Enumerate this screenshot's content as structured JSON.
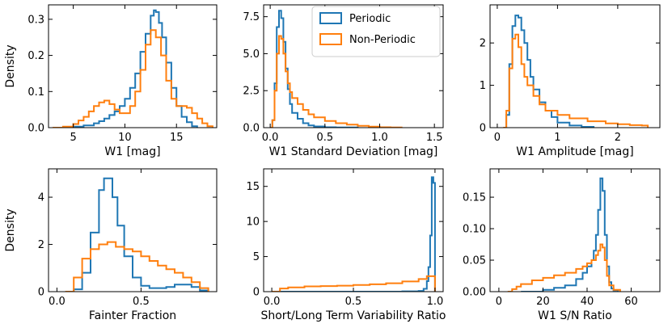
{
  "colors": {
    "periodic": "#1f77b4",
    "nonperiodic": "#ff7f0e"
  },
  "legend": {
    "location": "upper-right of second panel",
    "entries": [
      "Periodic",
      "Non-Periodic"
    ]
  },
  "chart_data": [
    {
      "type": "histogram-step",
      "xlabel": "W1 [mag]",
      "ylabel": "Density",
      "xlim": [
        2.6,
        18.9
      ],
      "ylim": [
        0,
        0.34
      ],
      "xticks": [
        5,
        10,
        15
      ],
      "xtick_labels": [
        "5",
        "10",
        "15"
      ],
      "yticks": [
        0.0,
        0.1,
        0.2,
        0.3
      ],
      "ytick_labels": [
        "0.0",
        "0.1",
        "0.2",
        "0.3"
      ],
      "series": [
        {
          "name": "Periodic",
          "x": [
            4.0,
            5.0,
            6.0,
            7.0,
            7.5,
            8.0,
            8.5,
            9.0,
            9.5,
            10.0,
            10.5,
            11.0,
            11.5,
            12.0,
            12.5,
            12.8,
            13.0,
            13.3,
            13.6,
            14.0,
            14.5,
            15.0,
            15.5,
            16.0,
            16.5,
            17.0
          ],
          "y": [
            0.0,
            0.003,
            0.006,
            0.012,
            0.018,
            0.025,
            0.035,
            0.045,
            0.06,
            0.08,
            0.11,
            0.15,
            0.21,
            0.26,
            0.31,
            0.325,
            0.32,
            0.29,
            0.25,
            0.18,
            0.11,
            0.06,
            0.03,
            0.015,
            0.004,
            0.0
          ]
        },
        {
          "name": "Non-Periodic",
          "x": [
            3.0,
            4.0,
            5.0,
            5.5,
            6.0,
            6.5,
            7.0,
            7.5,
            8.0,
            8.5,
            9.0,
            9.5,
            10.0,
            10.5,
            11.0,
            11.5,
            12.0,
            12.5,
            13.0,
            13.5,
            14.0,
            14.5,
            15.0,
            15.5,
            16.0,
            16.5,
            17.0,
            17.5,
            18.0,
            18.5
          ],
          "y": [
            0.0,
            0.003,
            0.01,
            0.02,
            0.03,
            0.045,
            0.06,
            0.07,
            0.075,
            0.065,
            0.05,
            0.04,
            0.04,
            0.06,
            0.1,
            0.16,
            0.23,
            0.27,
            0.25,
            0.2,
            0.13,
            0.08,
            0.06,
            0.06,
            0.055,
            0.04,
            0.025,
            0.012,
            0.004,
            0.0
          ]
        }
      ]
    },
    {
      "type": "histogram-step",
      "xlabel": "W1 Standard Deviation [mag]",
      "ylabel": "",
      "xlim": [
        -0.06,
        1.58
      ],
      "ylim": [
        0,
        8.3
      ],
      "xticks": [
        0.0,
        0.5,
        1.0,
        1.5
      ],
      "xtick_labels": [
        "0.0",
        "0.5",
        "1.0",
        "1.5"
      ],
      "yticks": [
        0.0,
        2.5,
        5.0,
        7.5
      ],
      "ytick_labels": [
        "0.0",
        "2.5",
        "5.0",
        "7.5"
      ],
      "series": [
        {
          "name": "Periodic",
          "x": [
            0.0,
            0.02,
            0.04,
            0.06,
            0.08,
            0.1,
            0.12,
            0.14,
            0.16,
            0.18,
            0.2,
            0.25,
            0.3,
            0.35,
            0.4,
            0.5,
            0.6,
            0.8
          ],
          "y": [
            0.0,
            0.5,
            3.0,
            6.8,
            7.9,
            7.4,
            5.8,
            4.0,
            2.6,
            1.6,
            1.0,
            0.6,
            0.3,
            0.15,
            0.08,
            0.03,
            0.01,
            0.0
          ]
        },
        {
          "name": "Non-Periodic",
          "x": [
            0.0,
            0.02,
            0.04,
            0.06,
            0.08,
            0.1,
            0.12,
            0.14,
            0.16,
            0.18,
            0.2,
            0.25,
            0.3,
            0.35,
            0.4,
            0.5,
            0.6,
            0.7,
            0.8,
            0.9,
            1.0,
            1.1,
            1.2
          ],
          "y": [
            0.0,
            0.5,
            2.5,
            5.0,
            6.2,
            6.0,
            5.0,
            3.8,
            3.0,
            2.4,
            2.0,
            1.6,
            1.2,
            0.9,
            0.7,
            0.45,
            0.3,
            0.2,
            0.12,
            0.07,
            0.03,
            0.01,
            0.0
          ]
        }
      ]
    },
    {
      "type": "histogram-step",
      "xlabel": "W1 Amplitude [mag]",
      "ylabel": "",
      "xlim": [
        -0.12,
        2.7
      ],
      "ylim": [
        0,
        2.9
      ],
      "xticks": [
        0,
        1,
        2
      ],
      "xtick_labels": [
        "0",
        "1",
        "2"
      ],
      "yticks": [
        0,
        1,
        2
      ],
      "ytick_labels": [
        "0",
        "1",
        "2"
      ],
      "series": [
        {
          "name": "Periodic",
          "x": [
            0.1,
            0.15,
            0.2,
            0.25,
            0.3,
            0.35,
            0.4,
            0.45,
            0.5,
            0.55,
            0.6,
            0.7,
            0.8,
            0.9,
            1.0,
            1.2,
            1.4,
            1.6
          ],
          "y": [
            0.0,
            0.3,
            1.5,
            2.4,
            2.65,
            2.6,
            2.3,
            2.0,
            1.6,
            1.2,
            0.9,
            0.6,
            0.4,
            0.25,
            0.12,
            0.05,
            0.02,
            0.0
          ]
        },
        {
          "name": "Non-Periodic",
          "x": [
            0.1,
            0.15,
            0.2,
            0.25,
            0.3,
            0.35,
            0.4,
            0.45,
            0.5,
            0.6,
            0.7,
            0.8,
            1.0,
            1.2,
            1.5,
            1.8,
            2.0,
            2.2,
            2.4,
            2.5
          ],
          "y": [
            0.0,
            0.4,
            1.4,
            2.1,
            2.2,
            1.9,
            1.5,
            1.2,
            1.0,
            0.75,
            0.55,
            0.4,
            0.3,
            0.22,
            0.15,
            0.1,
            0.08,
            0.06,
            0.05,
            0.0
          ]
        }
      ]
    },
    {
      "type": "histogram-step",
      "xlabel": "Fainter Fraction",
      "ylabel": "Density",
      "xlim": [
        -0.05,
        0.95
      ],
      "ylim": [
        0,
        5.2
      ],
      "xticks": [
        0.0,
        0.5
      ],
      "xtick_labels": [
        "0.0",
        "0.5"
      ],
      "yticks": [
        0,
        2,
        4
      ],
      "ytick_labels": [
        "0",
        "2",
        "4"
      ],
      "series": [
        {
          "name": "Periodic",
          "x": [
            0.05,
            0.1,
            0.15,
            0.2,
            0.25,
            0.28,
            0.3,
            0.33,
            0.36,
            0.4,
            0.45,
            0.5,
            0.55,
            0.6,
            0.65,
            0.7,
            0.75,
            0.8,
            0.85,
            0.9
          ],
          "y": [
            0.0,
            0.1,
            0.8,
            2.5,
            4.3,
            4.8,
            4.8,
            4.0,
            2.8,
            1.5,
            0.6,
            0.25,
            0.15,
            0.15,
            0.2,
            0.3,
            0.3,
            0.2,
            0.05,
            0.0
          ]
        },
        {
          "name": "Non-Periodic",
          "x": [
            0.05,
            0.1,
            0.15,
            0.2,
            0.25,
            0.3,
            0.35,
            0.4,
            0.45,
            0.5,
            0.55,
            0.6,
            0.65,
            0.7,
            0.75,
            0.8,
            0.85,
            0.9
          ],
          "y": [
            0.0,
            0.6,
            1.4,
            1.8,
            2.0,
            2.1,
            1.9,
            1.8,
            1.7,
            1.5,
            1.3,
            1.1,
            0.95,
            0.8,
            0.6,
            0.4,
            0.15,
            0.0
          ]
        }
      ]
    },
    {
      "type": "histogram-step",
      "xlabel": "Short/Long Term Variability Ratio",
      "ylabel": "",
      "xlim": [
        -0.05,
        1.05
      ],
      "ylim": [
        0,
        17.5
      ],
      "xticks": [
        0.0,
        0.5,
        1.0
      ],
      "xtick_labels": [
        "0.0",
        "0.5",
        "1.0"
      ],
      "yticks": [
        0,
        5,
        10,
        15
      ],
      "ytick_labels": [
        "0",
        "5",
        "10",
        "15"
      ],
      "series": [
        {
          "name": "Periodic",
          "x": [
            0.0,
            0.8,
            0.9,
            0.93,
            0.95,
            0.96,
            0.97,
            0.98,
            0.99,
            1.0
          ],
          "y": [
            0.0,
            0.05,
            0.1,
            0.4,
            1.5,
            3.5,
            8.0,
            16.3,
            15.5,
            0.0
          ]
        },
        {
          "name": "Non-Periodic",
          "x": [
            0.0,
            0.05,
            0.1,
            0.2,
            0.3,
            0.4,
            0.5,
            0.6,
            0.7,
            0.8,
            0.9,
            0.95,
            1.0
          ],
          "y": [
            0.0,
            0.45,
            0.6,
            0.75,
            0.8,
            0.85,
            0.95,
            1.05,
            1.2,
            1.45,
            1.8,
            2.2,
            0.0
          ]
        }
      ]
    },
    {
      "type": "histogram-step",
      "xlabel": "W1 S/N Ratio",
      "ylabel": "",
      "xlim": [
        -4,
        73
      ],
      "ylim": [
        0,
        0.195
      ],
      "xticks": [
        0,
        20,
        40,
        60
      ],
      "xtick_labels": [
        "0",
        "20",
        "40",
        "60"
      ],
      "yticks": [
        0.0,
        0.05,
        0.1,
        0.15
      ],
      "ytick_labels": [
        "0.00",
        "0.05",
        "0.10",
        "0.15"
      ],
      "series": [
        {
          "name": "Periodic",
          "x": [
            10,
            20,
            25,
            30,
            35,
            38,
            40,
            42,
            43,
            44,
            45,
            46,
            47,
            48,
            49,
            50,
            51,
            52,
            54
          ],
          "y": [
            0.0,
            0.003,
            0.006,
            0.01,
            0.02,
            0.03,
            0.04,
            0.05,
            0.065,
            0.09,
            0.13,
            0.18,
            0.16,
            0.09,
            0.04,
            0.015,
            0.005,
            0.002,
            0.0
          ]
        },
        {
          "name": "Non-Periodic",
          "x": [
            4,
            6,
            8,
            10,
            15,
            20,
            25,
            30,
            35,
            38,
            40,
            42,
            44,
            45,
            46,
            47,
            48,
            49,
            50,
            52,
            55
          ],
          "y": [
            0.0,
            0.004,
            0.008,
            0.012,
            0.018,
            0.022,
            0.026,
            0.03,
            0.036,
            0.04,
            0.045,
            0.05,
            0.058,
            0.065,
            0.075,
            0.07,
            0.05,
            0.025,
            0.01,
            0.003,
            0.0
          ]
        }
      ]
    }
  ]
}
